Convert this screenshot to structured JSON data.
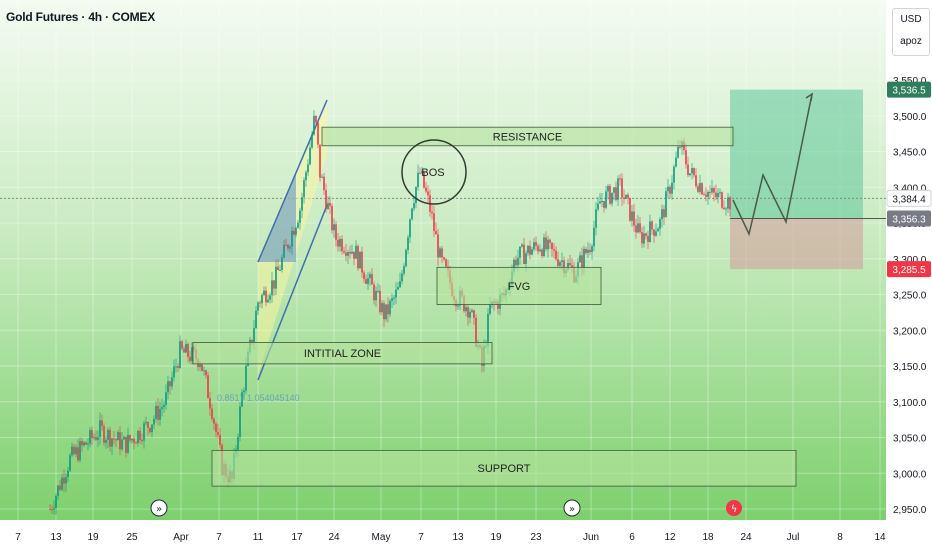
{
  "header": {
    "title": "Gold Futures · 4h · COMEX"
  },
  "currency_box": {
    "currency": "USD",
    "user": "apoz"
  },
  "chart_data": {
    "type": "candlestick",
    "title": "Gold Futures · 4h · COMEX",
    "x_ticks": [
      "7",
      "13",
      "19",
      "25",
      "Apr",
      "7",
      "11",
      "17",
      "24",
      "May",
      "7",
      "13",
      "19",
      "23",
      "Jun",
      "6",
      "12",
      "18",
      "24",
      "Jul",
      "8",
      "14"
    ],
    "y_ticks": [
      "3,550.0",
      "3,500.0",
      "3,450.0",
      "3,400.0",
      "3,350.0",
      "3,300.0",
      "3,250.0",
      "3,200.0",
      "3,150.0",
      "3,100.0",
      "3,050.0",
      "3,000.0",
      "2,950.0"
    ],
    "y_range": [
      2940,
      3580
    ],
    "price_labels": [
      {
        "value": 3536.5,
        "text": "3,536.5",
        "color": "#2e7d5b"
      },
      {
        "value": 3384.4,
        "text": "3,384.4",
        "color": "#ffffff"
      },
      {
        "value": 3356.3,
        "text": "3,356.3",
        "color": "#787b86"
      },
      {
        "value": 3285.5,
        "text": "3,285.5",
        "color": "#f23645"
      }
    ],
    "zones": [
      {
        "label": "RESISTANCE",
        "top": 3484,
        "bottom": 3458
      },
      {
        "label": "FVG",
        "top": 3288,
        "bottom": 3236
      },
      {
        "label": "INTITIAL ZONE",
        "top": 3183,
        "bottom": 3153
      },
      {
        "label": "SUPPORT",
        "top": 3032,
        "bottom": 2982
      }
    ],
    "circle_label": "BOS",
    "faded_annotation": "0.8517   1.054045140",
    "trade": {
      "target": 3536.5,
      "entry": 3356.3,
      "stop": 3285.5
    }
  }
}
